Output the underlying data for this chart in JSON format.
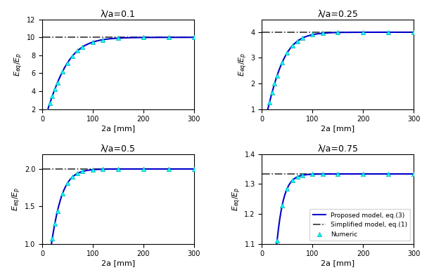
{
  "subplots": [
    {
      "title": "λ/a=0.1",
      "lambda_a": 0.1,
      "simplified": 10.0,
      "ylim": [
        2,
        12
      ],
      "yticks": [
        2,
        4,
        6,
        8,
        10,
        12
      ]
    },
    {
      "title": "λ/a=0.25",
      "lambda_a": 0.25,
      "simplified": 4.0,
      "ylim": [
        1,
        4.5
      ],
      "yticks": [
        1,
        2,
        3,
        4
      ]
    },
    {
      "title": "λ/a=0.5",
      "lambda_a": 0.5,
      "simplified": 2.0,
      "ylim": [
        1,
        2.2
      ],
      "yticks": [
        1.0,
        1.5,
        2.0
      ]
    },
    {
      "title": "λ/a=0.75",
      "lambda_a": 0.75,
      "simplified": 1.333,
      "ylim": [
        1.1,
        1.4
      ],
      "yticks": [
        1.1,
        1.2,
        1.3,
        1.4
      ]
    }
  ],
  "x_range": [
    0,
    300
  ],
  "xlabel": "2a [mm]",
  "ylabel": "E_eq/E_p",
  "line_color": "#0000CC",
  "simplified_color": "#333333",
  "marker_color": "cyan",
  "marker_edge": "#00AAAA",
  "legend_labels": [
    "Proposed model, eq.(3)",
    "Simplified model, eq.(1)",
    "Numeric"
  ],
  "triangle_x": [
    5,
    10,
    15,
    20,
    25,
    30,
    40,
    50,
    60,
    70,
    80,
    100,
    120,
    150,
    200,
    250,
    300
  ]
}
